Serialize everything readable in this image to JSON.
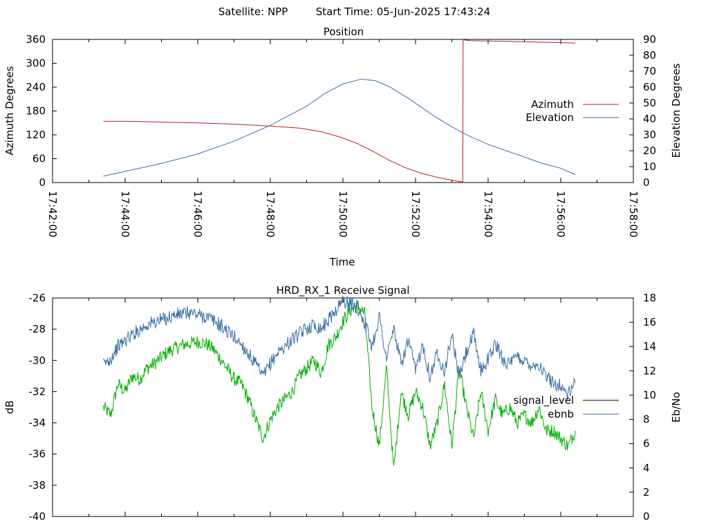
{
  "header": {
    "satellite_label": "Satellite: NPP",
    "start_time_label": "Start Time: 05-Jun-2025 17:43:24"
  },
  "chart_data": [
    {
      "type": "line",
      "title": "Position",
      "xlabel": "Time",
      "ylabel": "Azimuth Degrees",
      "y2label": "Elevation Degrees",
      "x_unit": "minutes since 17:42:00",
      "xlim": [
        0,
        16
      ],
      "x_ticks": [
        0,
        2,
        4,
        6,
        8,
        10,
        12,
        14,
        16
      ],
      "x_tick_labels": [
        "17:42:00",
        "17:44:00",
        "17:46:00",
        "17:48:00",
        "17:50:00",
        "17:52:00",
        "17:54:00",
        "17:56:00",
        "17:58:00"
      ],
      "ylim": [
        0,
        360
      ],
      "y_ticks": [
        0,
        60,
        120,
        180,
        240,
        300,
        360
      ],
      "y2lim": [
        0,
        90
      ],
      "y2_ticks": [
        0,
        10,
        20,
        30,
        40,
        50,
        60,
        70,
        80,
        90
      ],
      "legend_position": "right",
      "series": [
        {
          "name": "Azimuth",
          "axis": "left",
          "color": "#b22222",
          "x": [
            1.4,
            2.0,
            3.0,
            4.0,
            5.0,
            6.0,
            6.8,
            7.4,
            7.9,
            8.4,
            8.9,
            9.3,
            9.7,
            10.1,
            10.6,
            11.0,
            11.2,
            11.3,
            11.31,
            11.5,
            12.5,
            13.5,
            14.4
          ],
          "y": [
            154,
            154,
            152,
            150,
            147,
            142,
            137,
            128,
            115,
            98,
            75,
            55,
            38,
            25,
            13,
            6,
            3,
            1,
            359,
            357,
            355,
            353,
            351
          ]
        },
        {
          "name": "Elevation",
          "axis": "right",
          "color": "#3d6fa8",
          "x": [
            1.4,
            2.0,
            3.0,
            4.0,
            5.0,
            6.0,
            7.0,
            7.5,
            8.0,
            8.5,
            8.9,
            9.3,
            9.8,
            10.5,
            11.0,
            11.5,
            12.0,
            12.5,
            13.0,
            13.5,
            14.0,
            14.4
          ],
          "y": [
            4,
            7,
            12,
            18,
            26,
            36,
            48,
            56,
            62,
            65,
            64,
            60,
            53,
            42,
            35,
            29,
            24,
            20,
            16,
            12,
            9,
            5
          ]
        }
      ]
    },
    {
      "type": "line",
      "title": "HRD_RX_1 Receive Signal",
      "xlabel": "",
      "ylabel": "dB",
      "y2label": "Eb/No",
      "x_unit": "minutes since 17:42:00",
      "xlim": [
        0,
        16
      ],
      "ylim": [
        -40,
        -26
      ],
      "y_ticks": [
        -40,
        -38,
        -36,
        -34,
        -32,
        -30,
        -28,
        -26
      ],
      "y2lim": [
        0,
        18
      ],
      "y2_ticks": [
        0,
        2,
        4,
        6,
        8,
        10,
        12,
        14,
        16,
        18
      ],
      "legend_position": "right",
      "series": [
        {
          "name": "signal_level",
          "axis": "left",
          "color": "#00b000",
          "x": [
            1.4,
            1.6,
            1.8,
            2.0,
            2.2,
            2.4,
            2.6,
            2.8,
            3.0,
            3.2,
            3.4,
            3.6,
            3.8,
            4.0,
            4.2,
            4.4,
            4.6,
            4.8,
            5.0,
            5.2,
            5.4,
            5.6,
            5.8,
            6.0,
            6.2,
            6.4,
            6.6,
            6.8,
            7.0,
            7.2,
            7.4,
            7.6,
            7.8,
            8.0,
            8.2,
            8.4,
            8.6,
            8.8,
            9.0,
            9.2,
            9.4,
            9.6,
            9.8,
            10.0,
            10.2,
            10.4,
            10.6,
            10.8,
            11.0,
            11.2,
            11.4,
            11.6,
            11.8,
            12.0,
            12.2,
            12.4,
            12.6,
            12.8,
            13.0,
            13.2,
            13.4,
            13.6,
            13.8,
            14.0,
            14.2,
            14.4
          ],
          "y": [
            -33.0,
            -33.5,
            -31.5,
            -32.0,
            -31.0,
            -31.2,
            -30.5,
            -30.2,
            -29.8,
            -29.4,
            -29.2,
            -29.0,
            -28.9,
            -28.8,
            -28.9,
            -29.2,
            -29.8,
            -30.5,
            -31.2,
            -31.5,
            -32.5,
            -33.8,
            -35.0,
            -33.8,
            -33.0,
            -32.5,
            -32.0,
            -31.0,
            -30.5,
            -30.0,
            -30.8,
            -29.0,
            -28.5,
            -27.5,
            -26.8,
            -26.5,
            -27.0,
            -33.0,
            -35.5,
            -30.5,
            -37.0,
            -32.0,
            -33.5,
            -32.0,
            -33.0,
            -35.5,
            -34.0,
            -31.5,
            -35.5,
            -30.5,
            -33.0,
            -35.0,
            -32.0,
            -34.5,
            -32.5,
            -33.5,
            -33.0,
            -34.0,
            -33.5,
            -34.0,
            -33.0,
            -34.5,
            -34.5,
            -35.0,
            -35.5,
            -34.5
          ]
        },
        {
          "name": "ebnb",
          "axis": "right",
          "color": "#3d6fa8",
          "x": [
            1.4,
            1.6,
            1.8,
            2.0,
            2.2,
            2.4,
            2.6,
            2.8,
            3.0,
            3.2,
            3.4,
            3.6,
            3.8,
            4.0,
            4.2,
            4.4,
            4.6,
            4.8,
            5.0,
            5.2,
            5.4,
            5.6,
            5.8,
            6.0,
            6.2,
            6.4,
            6.6,
            6.8,
            7.0,
            7.2,
            7.4,
            7.6,
            7.8,
            8.0,
            8.2,
            8.4,
            8.6,
            8.8,
            9.0,
            9.2,
            9.4,
            9.6,
            9.8,
            10.0,
            10.2,
            10.4,
            10.6,
            10.8,
            11.0,
            11.2,
            11.4,
            11.6,
            11.8,
            12.0,
            12.2,
            12.4,
            12.6,
            12.8,
            13.0,
            13.2,
            13.4,
            13.6,
            13.8,
            14.0,
            14.2,
            14.4
          ],
          "y": [
            12.5,
            13.0,
            14.0,
            14.5,
            15.0,
            15.4,
            15.8,
            16.0,
            16.2,
            16.4,
            16.6,
            16.7,
            16.8,
            16.6,
            16.5,
            16.2,
            15.8,
            15.3,
            14.8,
            14.2,
            13.4,
            12.5,
            11.5,
            12.6,
            13.5,
            14.0,
            14.6,
            15.0,
            15.5,
            15.8,
            15.5,
            16.2,
            17.0,
            17.8,
            17.5,
            17.2,
            16.0,
            14.0,
            16.5,
            13.0,
            15.5,
            12.5,
            14.5,
            12.0,
            14.2,
            11.5,
            13.5,
            12.0,
            15.0,
            11.5,
            13.5,
            15.0,
            12.0,
            13.0,
            14.2,
            13.0,
            12.5,
            13.2,
            12.8,
            12.5,
            12.5,
            11.5,
            11.0,
            10.8,
            10.0,
            11.0
          ]
        }
      ]
    }
  ]
}
